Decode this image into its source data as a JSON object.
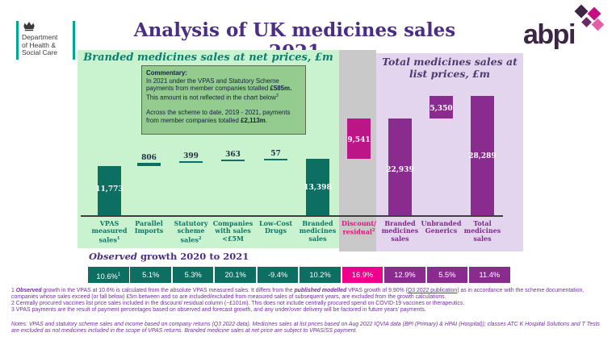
{
  "header": {
    "dhsc_lines": [
      "Department",
      "of Health &",
      "Social Care"
    ],
    "title": "Analysis of UK medicines sales 2021",
    "abpi": "abpi"
  },
  "panels": {
    "left_title": "Branded medicines sales at net prices, £m",
    "right_title": "Total medicines sales at list prices, £m"
  },
  "commentary": {
    "heading": "Commentary:",
    "p1a": "In 2021 under the VPAS and Statutory Scheme payments from member companies totalled ",
    "p1b": "£585m.",
    "p1c": " This amount is not reflected in the chart below",
    "p1sup": "3",
    "p2a": "Across the scheme to date, 2019 - 2021, payments from member companies totalled ",
    "p2b": "£2,113m",
    "p2c": "."
  },
  "chart_data": {
    "type": "bar",
    "subtype": "waterfall",
    "unit": "£m",
    "ylim": [
      0,
      28289
    ],
    "palette": {
      "teal": "#0D6E62",
      "purple": "#8A2B8F",
      "magenta": "#BC1588",
      "pink": "#EC008C"
    },
    "label_colors": {
      "teal": "#0E7668",
      "magenta": "#E3137E",
      "purple": "#7E2A86"
    },
    "bars": [
      {
        "category": "VPAS measured sales",
        "sup": "1",
        "value": 11773,
        "base": 0,
        "display": "11,773",
        "palette": "teal",
        "label_inside": true
      },
      {
        "category": "Parallel Imports",
        "sup": "",
        "value": 806,
        "base": 11773,
        "display": "806",
        "palette": "teal",
        "label_inside": false
      },
      {
        "category": "Statutory scheme sales",
        "sup": "2",
        "value": 399,
        "base": 12579,
        "display": "399",
        "palette": "teal",
        "label_inside": false
      },
      {
        "category": "Companies with sales <£5M",
        "sup": "",
        "value": 363,
        "base": 12978,
        "display": "363",
        "palette": "teal",
        "label_inside": false
      },
      {
        "category": "Low-Cost Drugs",
        "sup": "",
        "value": 57,
        "base": 13341,
        "display": "57",
        "palette": "teal",
        "label_inside": false
      },
      {
        "category": "Branded medicines sales",
        "sup": "",
        "value": 13398,
        "base": 0,
        "display": "13,398",
        "palette": "teal",
        "label_inside": true
      },
      {
        "category": "Discount/ residual",
        "sup": "2",
        "value": 9541,
        "base": 13398,
        "display": "9,541",
        "palette": "magenta",
        "label_inside": true
      },
      {
        "category": "Branded medicines sales",
        "sup": "",
        "value": 22939,
        "base": 0,
        "display": "22,939",
        "palette": "purple",
        "label_inside": true
      },
      {
        "category": "Unbranded Generics",
        "sup": "",
        "value": 5350,
        "base": 22939,
        "display": "5,350",
        "palette": "purple",
        "label_inside": true
      },
      {
        "category": "Total medicines sales",
        "sup": "",
        "value": 28289,
        "base": 0,
        "display": "28,289",
        "palette": "purple",
        "label_inside": true
      }
    ]
  },
  "growth": {
    "title_em": "Observed",
    "title_rest": " growth 2020 to 2021",
    "cells": [
      {
        "label": "10.6%",
        "sup": "1",
        "palette": "teal"
      },
      {
        "label": "5.1%",
        "sup": "",
        "palette": "teal"
      },
      {
        "label": "5.3%",
        "sup": "",
        "palette": "teal"
      },
      {
        "label": "20.1%",
        "sup": "",
        "palette": "teal"
      },
      {
        "label": "-9.4%",
        "sup": "",
        "palette": "teal"
      },
      {
        "label": "10.2%",
        "sup": "",
        "palette": "teal"
      },
      {
        "label": "16.9%",
        "sup": "",
        "palette": "pink"
      },
      {
        "label": "12.9%",
        "sup": "",
        "palette": "purple"
      },
      {
        "label": "5.5%",
        "sup": "",
        "palette": "purple"
      },
      {
        "label": "11.4%",
        "sup": "",
        "palette": "purple"
      }
    ]
  },
  "footnotes": {
    "f1a": "1 ",
    "f1b": "Observed",
    "f1c": " growth in the VPAS at 10.6% is calculated from the absolute VPAS measured sales. It differs from the ",
    "f1d": "published modelled",
    "f1e": " VPAS growth of 9.90% (",
    "f1link": "Q3 2022 publication",
    "f1f": ") as in accordance with the scheme documentation, companies whose sales exceed (or fall below) £5m between and so are included/excluded from measured sales of subsequent years, are excluded from the growth calculations.",
    "f2": "2 Centrally procured vaccines list price sales included in the discount/ residual column (~£101m). This does not include centrally procured spend on COVID-19 vaccines or therapeutics.",
    "f3": "3 VPAS payments are the result of payment percentages based on observed and forecast growth, and any under/over delivery will be factored in future years' payments."
  },
  "notes": "Notes: VPAS and statutory scheme sales and income based on company returns (Q3 2022 data). Medicines sales at list prices based on Aug 2022 IQVIA data (BPI (Primary) & HPAI (Hospital)); classes ATC K Hospital Solutions and T Tests are excluded as not medicines included in the scope of VPAS returns. Branded medicine sales at net price are subject to VPAS/SS payment."
}
